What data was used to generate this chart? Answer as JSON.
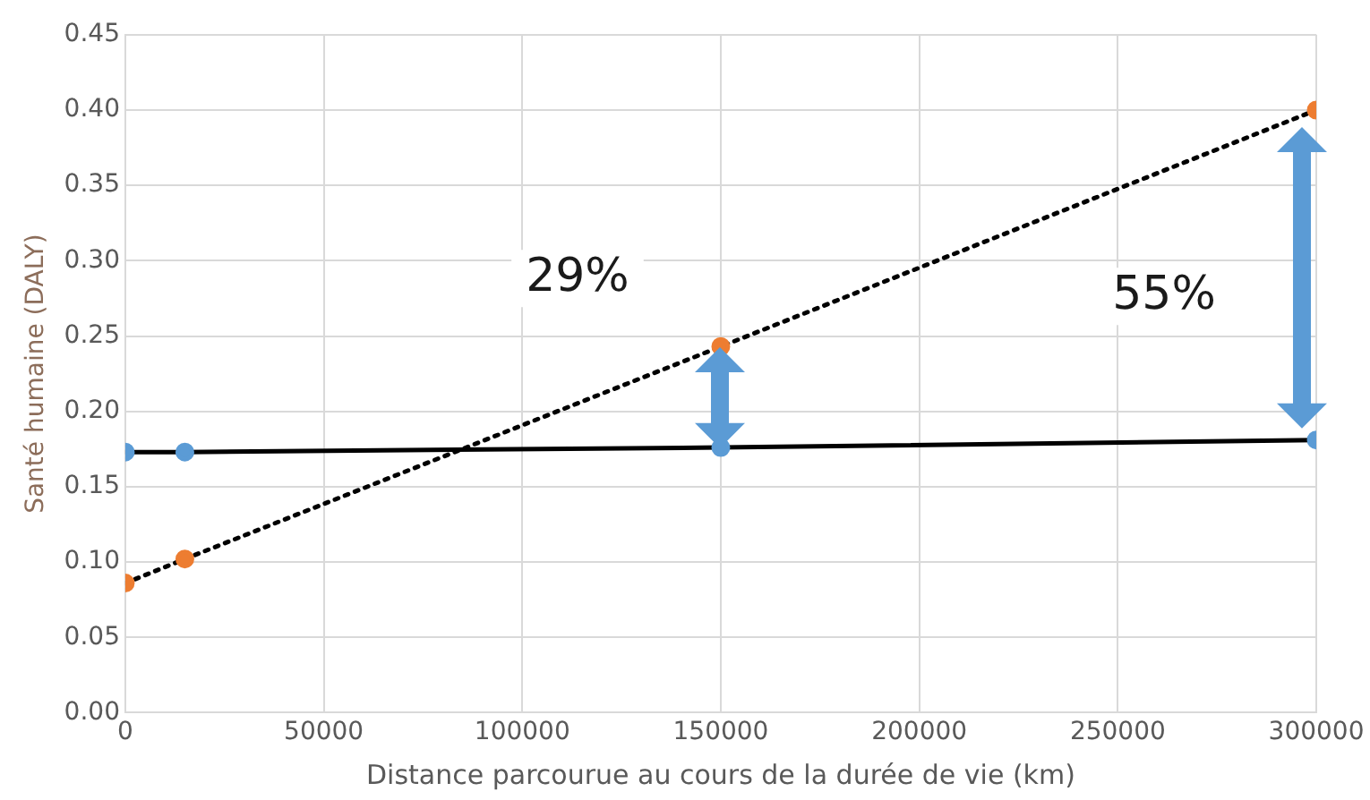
{
  "chart_data": {
    "type": "line",
    "xlabel": "Distance parcourue au cours de la durée de vie (km)",
    "ylabel": "Santé humaine (DALY)",
    "series": [
      {
        "color": "#5b9bd5",
        "line_style": "solid",
        "x": [
          0,
          15000,
          150000,
          300000
        ],
        "values": [
          0.173,
          0.173,
          0.176,
          0.181
        ]
      },
      {
        "color": "#ed7d31",
        "line_style": "dotted",
        "x": [
          0,
          15000,
          150000,
          300000
        ],
        "values": [
          0.086,
          0.102,
          0.243,
          0.4
        ]
      }
    ],
    "xlim": [
      0,
      300000
    ],
    "xticks": [
      0,
      50000,
      100000,
      150000,
      200000,
      250000,
      300000
    ],
    "ylim": [
      0,
      0.45
    ],
    "yticks": [
      {
        "value": 0,
        "label": "0.00"
      },
      {
        "value": 0.05,
        "label": "0.05"
      },
      {
        "value": 0.1,
        "label": "0.10"
      },
      {
        "value": 0.15,
        "label": "0.15"
      },
      {
        "value": 0.2,
        "label": "0.20"
      },
      {
        "value": 0.25,
        "label": "0.25"
      },
      {
        "value": 0.3,
        "label": "0.30"
      },
      {
        "value": 0.35,
        "label": "0.35"
      },
      {
        "value": 0.4,
        "label": "0.40"
      },
      {
        "value": 0.45,
        "label": "0.45"
      }
    ],
    "annotations": [
      "29%",
      "55%"
    ],
    "grid": true,
    "legend": false,
    "marker": "circle"
  }
}
